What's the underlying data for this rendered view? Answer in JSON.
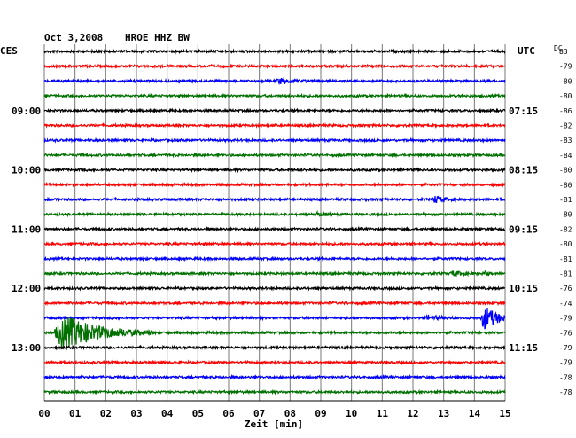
{
  "header": {
    "date": "Oct 3,2008",
    "station": "HROE HHZ BW",
    "left_zone": "CES",
    "right_zone": "UTC",
    "dc_label": "DC"
  },
  "chart_data": {
    "type": "line",
    "title": "Oct 3,2008   HROE HHZ BW",
    "xlabel": "Zeit [min]",
    "xlim": [
      0,
      15
    ],
    "x_ticks": [
      "00",
      "01",
      "02",
      "03",
      "04",
      "05",
      "06",
      "07",
      "08",
      "09",
      "10",
      "11",
      "12",
      "13",
      "14",
      "15"
    ],
    "grid": true,
    "left_time_labels": [
      {
        "row": 4,
        "label": "09:00"
      },
      {
        "row": 8,
        "label": "10:00"
      },
      {
        "row": 12,
        "label": "11:00"
      },
      {
        "row": 16,
        "label": "12:00"
      },
      {
        "row": 20,
        "label": "13:00"
      }
    ],
    "right_time_labels": [
      {
        "row": 4,
        "label": "07:15"
      },
      {
        "row": 8,
        "label": "08:15"
      },
      {
        "row": 12,
        "label": "09:15"
      },
      {
        "row": 16,
        "label": "10:15"
      },
      {
        "row": 20,
        "label": "11:15"
      }
    ],
    "trace_colors": [
      "#000000",
      "#ff0000",
      "#0000ff",
      "#007000"
    ],
    "dc_offsets": [
      "83",
      "-79",
      "-80",
      "-80",
      "-86",
      "-82",
      "-83",
      "-84",
      "-80",
      "-80",
      "-81",
      "-80",
      "-82",
      "-80",
      "-81",
      "-81",
      "-76",
      "-74",
      "-79",
      "-76",
      "-79",
      "-79",
      "-78",
      "-78"
    ],
    "events": [
      {
        "row": 2,
        "t_min": 7.5,
        "amp": 2.5,
        "dur": 1.5
      },
      {
        "row": 10,
        "t_min": 12.6,
        "amp": 4,
        "dur": 1
      },
      {
        "row": 11,
        "t_min": 8.8,
        "amp": 2.5,
        "dur": 0.6
      },
      {
        "row": 15,
        "t_min": 13.2,
        "amp": 2.5,
        "dur": 1
      },
      {
        "row": 15,
        "t_min": 14.3,
        "amp": 3,
        "dur": 0.3
      },
      {
        "row": 18,
        "t_min": 12.4,
        "amp": 3,
        "dur": 1
      },
      {
        "row": 18,
        "t_min": 14.2,
        "amp": 14,
        "dur": 1.2
      },
      {
        "row": 19,
        "t_min": 0.3,
        "amp": 20,
        "dur": 3.2
      }
    ]
  }
}
